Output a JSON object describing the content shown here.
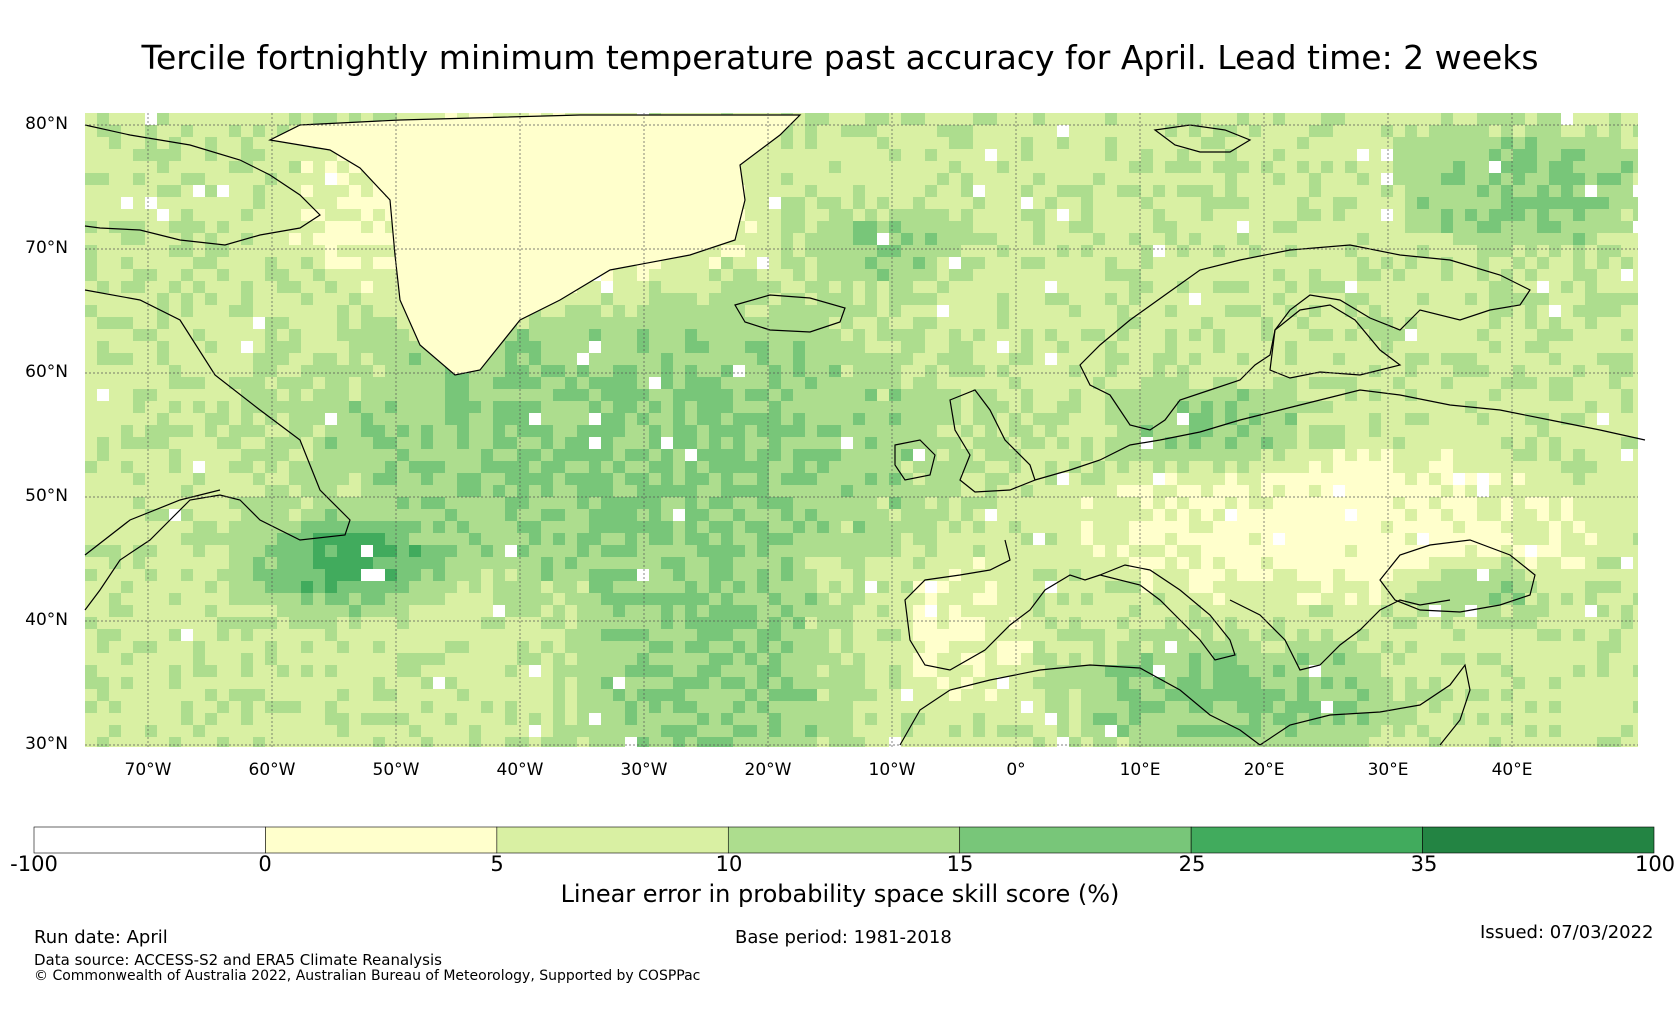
{
  "title": "Tercile fortnightly minimum temperature past accuracy for April. Lead time: 2 weeks",
  "map": {
    "lat_labels": [
      "80°N",
      "70°N",
      "60°N",
      "50°N",
      "40°N",
      "30°N"
    ],
    "lon_labels": [
      "70°W",
      "60°W",
      "50°W",
      "40°W",
      "30°W",
      "20°W",
      "10°W",
      "0°",
      "10°E",
      "20°E",
      "30°E",
      "40°E"
    ]
  },
  "colorbar": {
    "ticks": [
      "-100",
      "0",
      "5",
      "10",
      "15",
      "25",
      "35",
      "100"
    ],
    "colors": [
      "#ffffff",
      "#ffffcc",
      "#d9f0a3",
      "#addd8e",
      "#78c679",
      "#41ab5d",
      "#238443"
    ],
    "label": "Linear error in probability space skill score (%)"
  },
  "footer": {
    "run_date": "Run date: April",
    "base_period": "Base period: 1981-2018",
    "issued": "Issued: 07/03/2022",
    "data_source": "Data source: ACCESS-S2 and ERA5 Climate Reanalysis",
    "copyright": "© Commonwealth of Australia 2022, Australian Bureau of Meteorology, Supported by COSPPac"
  }
}
